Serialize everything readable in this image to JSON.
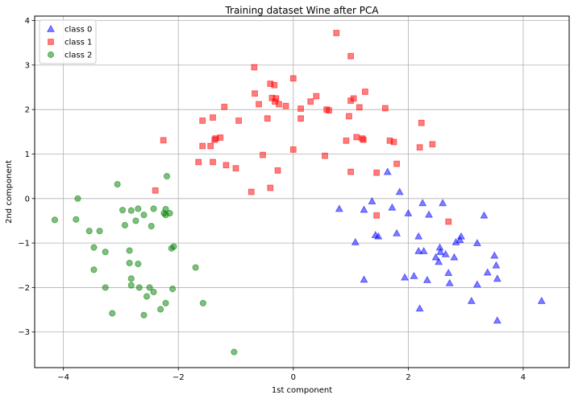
{
  "chart_data": {
    "type": "scatter",
    "title": "Training dataset Wine after PCA",
    "xlabel": "1st component",
    "ylabel": "2nd component",
    "xlim": [
      -4.5,
      4.8
    ],
    "ylim": [
      -3.8,
      4.1
    ],
    "xticks": [
      -4,
      -2,
      0,
      2,
      4
    ],
    "yticks": [
      -3,
      -2,
      -1,
      0,
      1,
      2,
      3,
      4
    ],
    "grid": true,
    "legend_position": "upper-left",
    "series": [
      {
        "name": "class 0",
        "marker": "triangle",
        "color": "#0000ff",
        "points": [
          [
            0.8,
            -0.23
          ],
          [
            1.08,
            -0.98
          ],
          [
            1.23,
            -0.25
          ],
          [
            1.23,
            -1.82
          ],
          [
            1.37,
            -0.06
          ],
          [
            1.43,
            -0.82
          ],
          [
            1.48,
            -0.85
          ],
          [
            1.64,
            0.6
          ],
          [
            1.72,
            -0.2
          ],
          [
            1.8,
            -0.78
          ],
          [
            1.85,
            0.15
          ],
          [
            1.94,
            -1.77
          ],
          [
            2.0,
            -0.33
          ],
          [
            2.1,
            -1.74
          ],
          [
            2.18,
            -0.85
          ],
          [
            2.18,
            -1.18
          ],
          [
            2.2,
            -2.47
          ],
          [
            2.25,
            -0.1
          ],
          [
            2.27,
            -1.18
          ],
          [
            2.33,
            -1.83
          ],
          [
            2.36,
            -0.36
          ],
          [
            2.48,
            -1.32
          ],
          [
            2.53,
            -1.42
          ],
          [
            2.55,
            -1.1
          ],
          [
            2.56,
            -1.2
          ],
          [
            2.6,
            -0.1
          ],
          [
            2.65,
            -1.25
          ],
          [
            2.7,
            -1.67
          ],
          [
            2.72,
            -1.9
          ],
          [
            2.8,
            -1.32
          ],
          [
            2.83,
            -0.98
          ],
          [
            2.9,
            -0.93
          ],
          [
            2.92,
            -0.85
          ],
          [
            3.1,
            -2.3
          ],
          [
            3.2,
            -1.0
          ],
          [
            3.2,
            -1.93
          ],
          [
            3.32,
            -0.38
          ],
          [
            3.38,
            -1.66
          ],
          [
            3.5,
            -1.28
          ],
          [
            3.53,
            -1.5
          ],
          [
            3.55,
            -1.8
          ],
          [
            3.55,
            -2.74
          ],
          [
            4.32,
            -2.3
          ]
        ]
      },
      {
        "name": "class 1",
        "marker": "square",
        "color": "#ff0000",
        "points": [
          [
            0.75,
            3.72
          ],
          [
            1.0,
            3.2
          ],
          [
            -0.68,
            2.95
          ],
          [
            0.0,
            2.7
          ],
          [
            -0.4,
            2.58
          ],
          [
            -0.33,
            2.55
          ],
          [
            0.4,
            2.3
          ],
          [
            -0.37,
            2.26
          ],
          [
            -0.3,
            2.25
          ],
          [
            -0.32,
            2.18
          ],
          [
            -0.25,
            2.12
          ],
          [
            -0.13,
            2.08
          ],
          [
            0.13,
            2.02
          ],
          [
            0.3,
            2.18
          ],
          [
            -0.67,
            2.36
          ],
          [
            -0.6,
            2.12
          ],
          [
            -1.2,
            2.06
          ],
          [
            0.58,
            2.0
          ],
          [
            0.62,
            1.98
          ],
          [
            1.0,
            2.2
          ],
          [
            1.05,
            2.25
          ],
          [
            1.15,
            2.05
          ],
          [
            1.25,
            2.4
          ],
          [
            1.6,
            2.03
          ],
          [
            0.97,
            1.85
          ],
          [
            1.1,
            1.38
          ],
          [
            1.2,
            1.35
          ],
          [
            1.22,
            1.32
          ],
          [
            0.13,
            1.8
          ],
          [
            -0.45,
            1.8
          ],
          [
            -0.95,
            1.75
          ],
          [
            -1.4,
            1.82
          ],
          [
            -1.58,
            1.75
          ],
          [
            -1.37,
            1.32
          ],
          [
            -1.35,
            1.35
          ],
          [
            -1.27,
            1.37
          ],
          [
            -1.58,
            1.18
          ],
          [
            -1.44,
            1.18
          ],
          [
            -2.26,
            1.31
          ],
          [
            1.68,
            1.3
          ],
          [
            1.75,
            1.27
          ],
          [
            2.23,
            1.7
          ],
          [
            2.2,
            1.15
          ],
          [
            2.42,
            1.22
          ],
          [
            1.8,
            0.78
          ],
          [
            0.0,
            1.1
          ],
          [
            0.92,
            1.3
          ],
          [
            0.55,
            0.96
          ],
          [
            1.0,
            0.6
          ],
          [
            1.45,
            0.58
          ],
          [
            -0.53,
            0.98
          ],
          [
            -1.65,
            0.82
          ],
          [
            -1.4,
            0.82
          ],
          [
            -1.17,
            0.75
          ],
          [
            -1.0,
            0.68
          ],
          [
            -0.27,
            0.63
          ],
          [
            -0.73,
            0.15
          ],
          [
            -0.4,
            0.24
          ],
          [
            -2.4,
            0.18
          ],
          [
            1.45,
            -0.38
          ],
          [
            2.7,
            -0.52
          ]
        ]
      },
      {
        "name": "class 2",
        "marker": "circle",
        "color": "#008000",
        "points": [
          [
            -3.75,
            0.0
          ],
          [
            -3.06,
            0.32
          ],
          [
            -2.2,
            0.5
          ],
          [
            -4.15,
            -0.48
          ],
          [
            -3.78,
            -0.47
          ],
          [
            -3.55,
            -0.73
          ],
          [
            -3.37,
            -0.73
          ],
          [
            -3.47,
            -1.1
          ],
          [
            -3.27,
            -1.2
          ],
          [
            -3.47,
            -1.6
          ],
          [
            -3.27,
            -2.0
          ],
          [
            -2.97,
            -0.26
          ],
          [
            -2.82,
            -0.27
          ],
          [
            -2.7,
            -0.23
          ],
          [
            -2.6,
            -0.37
          ],
          [
            -2.43,
            -0.23
          ],
          [
            -2.74,
            -0.5
          ],
          [
            -2.93,
            -0.6
          ],
          [
            -2.22,
            -0.24
          ],
          [
            -2.25,
            -0.33
          ],
          [
            -2.15,
            -0.33
          ],
          [
            -2.22,
            -0.37
          ],
          [
            -2.47,
            -0.62
          ],
          [
            -2.12,
            -1.12
          ],
          [
            -2.08,
            -1.08
          ],
          [
            -2.85,
            -1.17
          ],
          [
            -2.85,
            -1.45
          ],
          [
            -2.7,
            -1.47
          ],
          [
            -2.82,
            -1.8
          ],
          [
            -2.82,
            -1.95
          ],
          [
            -2.68,
            -2.0
          ],
          [
            -2.5,
            -2.0
          ],
          [
            -2.43,
            -2.1
          ],
          [
            -2.55,
            -2.2
          ],
          [
            -2.1,
            -2.03
          ],
          [
            -1.7,
            -1.55
          ],
          [
            -3.15,
            -2.58
          ],
          [
            -2.6,
            -2.62
          ],
          [
            -2.31,
            -2.49
          ],
          [
            -2.22,
            -2.35
          ],
          [
            -1.57,
            -2.35
          ],
          [
            -1.03,
            -3.45
          ]
        ]
      }
    ]
  }
}
